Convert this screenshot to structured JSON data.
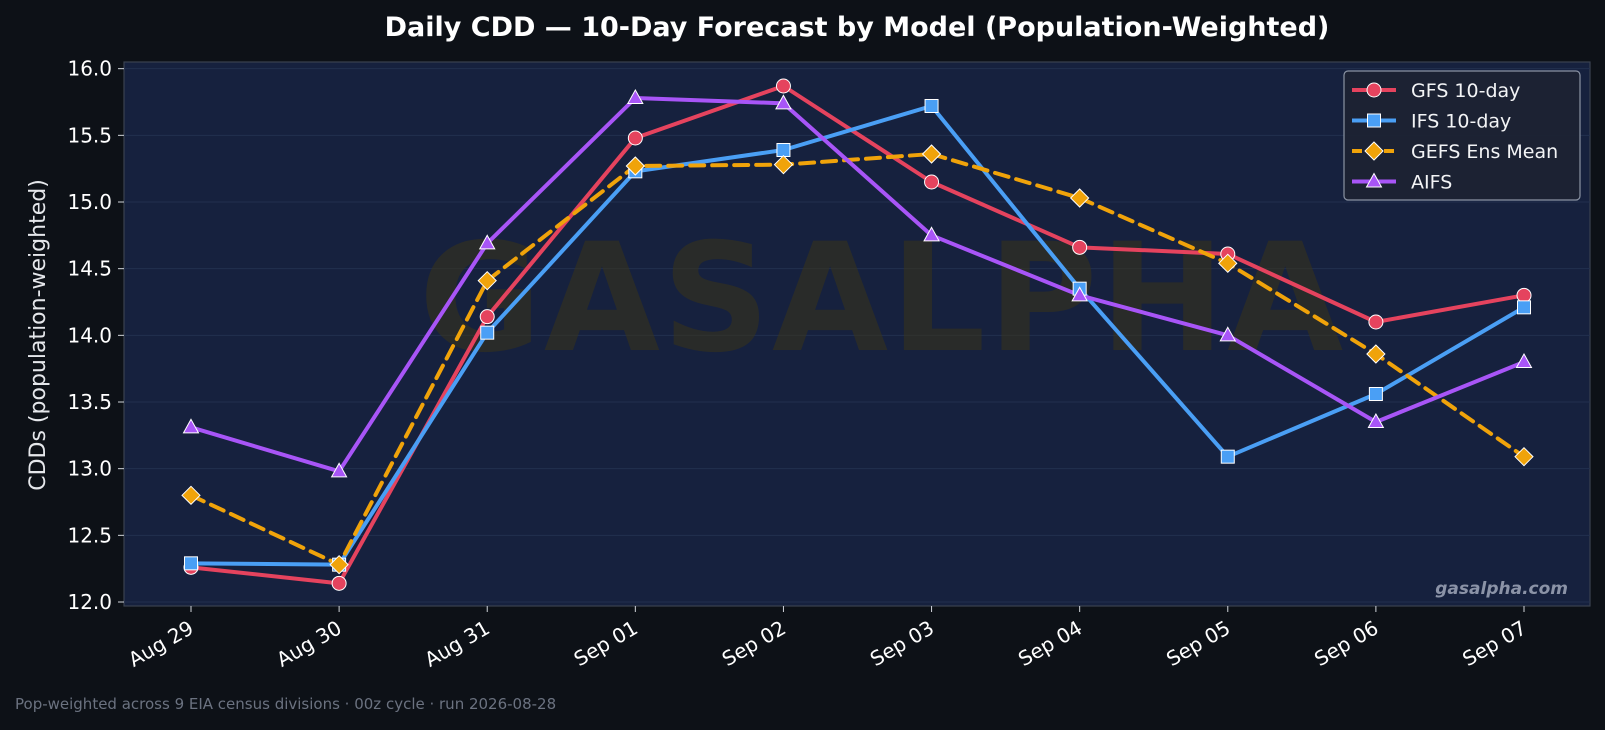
{
  "watermark": "GASALPHA",
  "credit": "gasalpha.com",
  "footer_note": "Pop-weighted across 9 EIA census divisions  ·  00z cycle  ·  run 2026-08-28",
  "colors": {
    "page_bg": "#0d1117",
    "plot_bg": "#16213e",
    "gfs": "#e5435e",
    "ifs": "#4a9ff5",
    "gefs": "#f0a30a",
    "aifs": "#a855f7"
  },
  "chart_data": {
    "type": "line",
    "title": "Daily CDD — 10-Day Forecast by Model (Population-Weighted)",
    "xlabel": "",
    "ylabel": "CDDs (population-weighted)",
    "categories": [
      "Aug 29",
      "Aug 30",
      "Aug 31",
      "Sep 01",
      "Sep 02",
      "Sep 03",
      "Sep 04",
      "Sep 05",
      "Sep 06",
      "Sep 07"
    ],
    "ylim": [
      11.97,
      16.05
    ],
    "yticks": [
      "12.0",
      "12.5",
      "13.0",
      "13.5",
      "14.0",
      "14.5",
      "15.0",
      "15.5",
      "16.0"
    ],
    "grid": true,
    "legend_position": "top-right",
    "series": [
      {
        "name": "GFS 10-day",
        "color": "#e5435e",
        "marker": "circle",
        "dashed": false,
        "values": [
          12.26,
          12.14,
          14.14,
          15.48,
          15.87,
          15.15,
          14.66,
          14.61,
          14.1,
          14.3
        ]
      },
      {
        "name": "IFS 10-day",
        "color": "#4a9ff5",
        "marker": "square",
        "dashed": false,
        "values": [
          12.29,
          12.28,
          14.02,
          15.23,
          15.39,
          15.72,
          14.35,
          13.09,
          13.56,
          14.21
        ]
      },
      {
        "name": "GEFS Ens Mean",
        "color": "#f0a30a",
        "marker": "diamond",
        "dashed": true,
        "values": [
          12.8,
          12.28,
          14.41,
          15.27,
          15.28,
          15.36,
          15.03,
          14.54,
          13.86,
          13.09
        ]
      },
      {
        "name": "AIFS",
        "color": "#a855f7",
        "marker": "triangle",
        "dashed": false,
        "values": [
          13.31,
          12.98,
          14.69,
          15.78,
          15.74,
          14.75,
          14.3,
          14.0,
          13.35,
          13.8
        ]
      }
    ]
  }
}
